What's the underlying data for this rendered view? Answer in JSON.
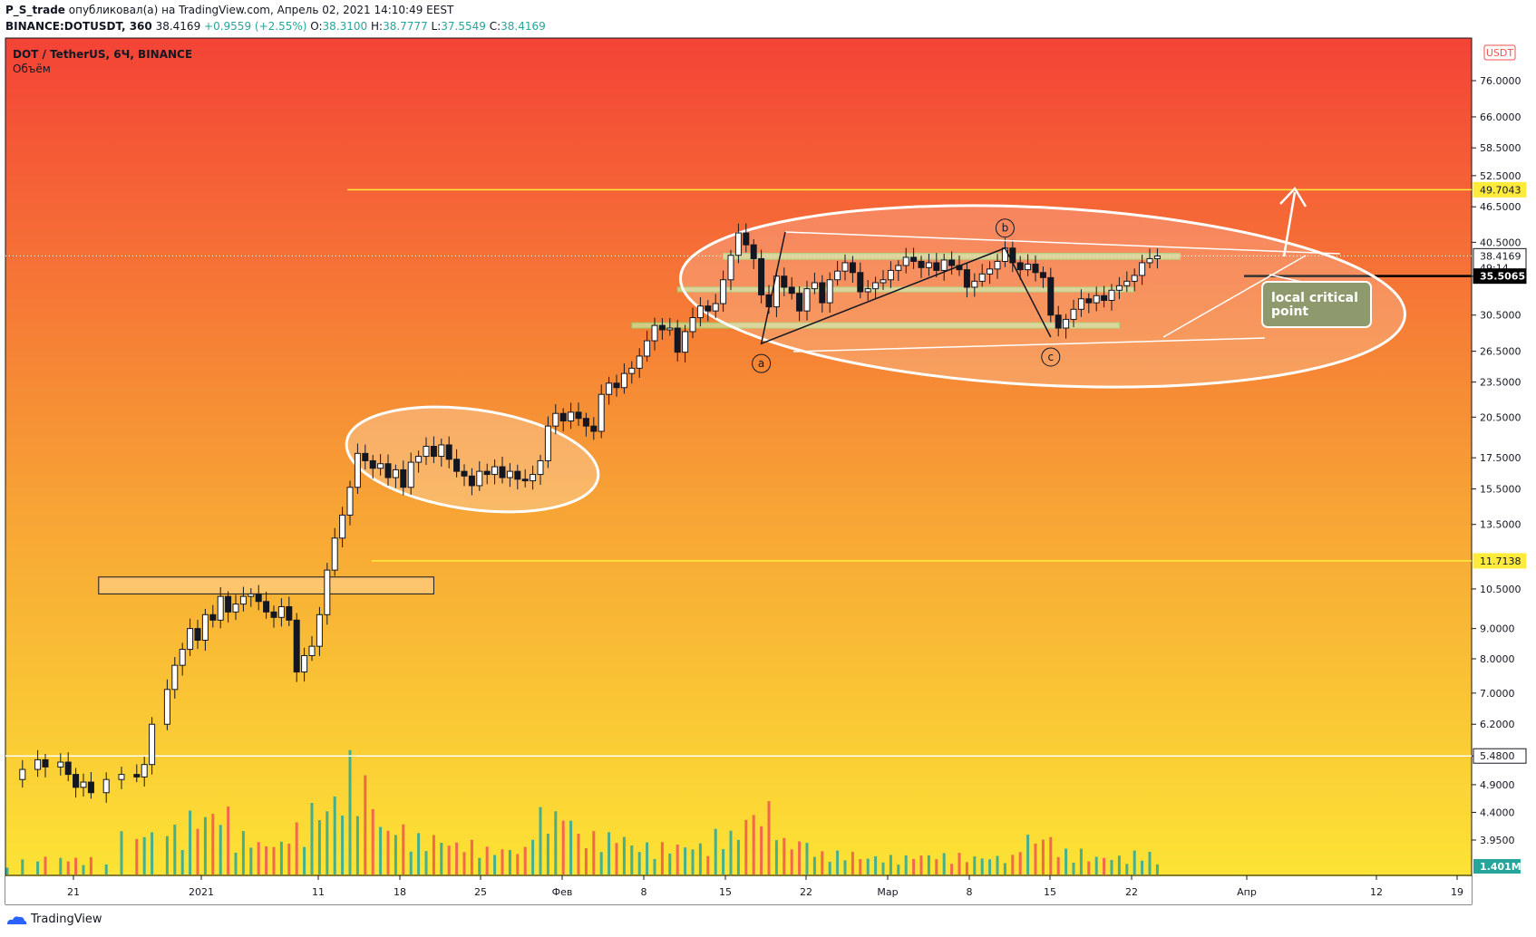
{
  "header": {
    "publisher": "P_S_trade",
    "published_text": "опубликовал(а) на TradingView.com, Апрель 02, 2021 14:10:49 EEST",
    "symbol_line_prefix": "BINANCE:DOTUSDT, 360",
    "last": "38.4169",
    "change": "+0.9559 (+2.55%)",
    "o_label": "O:",
    "o_value": "38.3100",
    "h_label": "H:",
    "h_value": "38.7777",
    "l_label": "L:",
    "l_value": "37.5549",
    "c_label": "C:",
    "c_value": "38.4169"
  },
  "chart": {
    "legend_title": "DOT / TetherUS, 6Ч, BINANCE",
    "legend_volume": "Объём",
    "currency_badge": "USDT",
    "countdown": "49:14",
    "volume_badge": "1.401M",
    "annotation_label_line1": "local critical",
    "annotation_label_line2": "point",
    "wave_labels": [
      "a",
      "b",
      "c"
    ],
    "colors": {
      "bg_top": "#f44336",
      "bg_mid": "#f7a535",
      "bg_bottom": "#fde835",
      "candle": "#131722",
      "volume_up": "#26a69a",
      "volume_down": "#ef5350",
      "yellow_line": "#ffeb3b",
      "white": "#ffffff",
      "black": "#000000"
    }
  },
  "footer": {
    "logo_text": "TradingView"
  },
  "chart_data": {
    "type": "candlestick",
    "scale": "log",
    "y_ticks": [
      "76.0000",
      "66.0000",
      "58.5000",
      "52.5000",
      "46.5000",
      "40.5000",
      "35.5000",
      "30.5000",
      "26.5000",
      "23.5000",
      "20.5000",
      "17.5000",
      "15.5000",
      "13.5000",
      "10.5000",
      "9.0000",
      "8.0000",
      "7.0000",
      "6.2000",
      "5.4800",
      "4.9000",
      "4.4000",
      "3.9500"
    ],
    "x_ticks": [
      "21",
      "2021",
      "11",
      "18",
      "25",
      "Фев",
      "8",
      "15",
      "22",
      "Мар",
      "8",
      "15",
      "22",
      "Апр",
      "12",
      "19"
    ],
    "price_badges": [
      {
        "label": "49.7043",
        "value": 49.7043,
        "style": "yellow"
      },
      {
        "label": "38.4169",
        "value": 38.4169,
        "style": "white"
      },
      {
        "label": "35.5065",
        "value": 35.5065,
        "style": "black"
      },
      {
        "label": "11.7138",
        "value": 11.7138,
        "style": "yellow"
      },
      {
        "label": "5.4800",
        "value": 5.48,
        "style": "white"
      }
    ],
    "horizontal_lines": [
      {
        "value": 49.7043,
        "color": "yellow"
      },
      {
        "value": 11.7138,
        "color": "yellow"
      },
      {
        "value": 5.48,
        "color": "white"
      },
      {
        "value": 35.5065,
        "color": "black"
      }
    ],
    "price_path": [
      {
        "x": 0,
        "p": 5.0
      },
      {
        "x": 2,
        "p": 5.2
      },
      {
        "x": 4,
        "p": 5.4
      },
      {
        "x": 5,
        "p": 5.25
      },
      {
        "x": 7,
        "p": 5.35
      },
      {
        "x": 8,
        "p": 5.1
      },
      {
        "x": 9,
        "p": 4.85
      },
      {
        "x": 10,
        "p": 4.95
      },
      {
        "x": 11,
        "p": 4.75
      },
      {
        "x": 13,
        "p": 5.0
      },
      {
        "x": 15,
        "p": 5.1
      },
      {
        "x": 17,
        "p": 5.05
      },
      {
        "x": 18,
        "p": 5.3
      },
      {
        "x": 19,
        "p": 6.2
      },
      {
        "x": 21,
        "p": 7.1
      },
      {
        "x": 22,
        "p": 7.8
      },
      {
        "x": 23,
        "p": 8.3
      },
      {
        "x": 24,
        "p": 9.0
      },
      {
        "x": 25,
        "p": 8.6
      },
      {
        "x": 26,
        "p": 9.5
      },
      {
        "x": 27,
        "p": 9.3
      },
      {
        "x": 28,
        "p": 10.2
      },
      {
        "x": 29,
        "p": 9.6
      },
      {
        "x": 30,
        "p": 9.9
      },
      {
        "x": 31,
        "p": 10.2
      },
      {
        "x": 32,
        "p": 10.3
      },
      {
        "x": 33,
        "p": 10.0
      },
      {
        "x": 34,
        "p": 9.6
      },
      {
        "x": 35,
        "p": 9.4
      },
      {
        "x": 36,
        "p": 9.8
      },
      {
        "x": 37,
        "p": 9.3
      },
      {
        "x": 38,
        "p": 7.6
      },
      {
        "x": 39,
        "p": 8.1
      },
      {
        "x": 40,
        "p": 8.4
      },
      {
        "x": 41,
        "p": 9.5
      },
      {
        "x": 42,
        "p": 11.3
      },
      {
        "x": 43,
        "p": 12.8
      },
      {
        "x": 44,
        "p": 14.0
      },
      {
        "x": 45,
        "p": 15.6
      },
      {
        "x": 46,
        "p": 17.8
      },
      {
        "x": 47,
        "p": 17.3
      },
      {
        "x": 48,
        "p": 16.8
      },
      {
        "x": 49,
        "p": 17.1
      },
      {
        "x": 50,
        "p": 16.2
      },
      {
        "x": 51,
        "p": 16.7
      },
      {
        "x": 52,
        "p": 15.6
      },
      {
        "x": 53,
        "p": 17.2
      },
      {
        "x": 54,
        "p": 17.6
      },
      {
        "x": 55,
        "p": 18.3
      },
      {
        "x": 56,
        "p": 17.6
      },
      {
        "x": 57,
        "p": 18.4
      },
      {
        "x": 58,
        "p": 17.4
      },
      {
        "x": 59,
        "p": 16.6
      },
      {
        "x": 60,
        "p": 16.3
      },
      {
        "x": 61,
        "p": 15.7
      },
      {
        "x": 62,
        "p": 16.6
      },
      {
        "x": 63,
        "p": 16.4
      },
      {
        "x": 64,
        "p": 16.9
      },
      {
        "x": 65,
        "p": 16.2
      },
      {
        "x": 66,
        "p": 16.6
      },
      {
        "x": 67,
        "p": 16.1
      },
      {
        "x": 68,
        "p": 16.0
      },
      {
        "x": 69,
        "p": 16.4
      },
      {
        "x": 70,
        "p": 17.3
      },
      {
        "x": 71,
        "p": 19.8
      },
      {
        "x": 72,
        "p": 20.8
      },
      {
        "x": 73,
        "p": 20.2
      },
      {
        "x": 74,
        "p": 20.9
      },
      {
        "x": 75,
        "p": 20.4
      },
      {
        "x": 76,
        "p": 19.8
      },
      {
        "x": 77,
        "p": 19.4
      },
      {
        "x": 78,
        "p": 22.4
      },
      {
        "x": 79,
        "p": 23.4
      },
      {
        "x": 80,
        "p": 23.0
      },
      {
        "x": 81,
        "p": 24.3
      },
      {
        "x": 82,
        "p": 24.8
      },
      {
        "x": 83,
        "p": 26.0
      },
      {
        "x": 84,
        "p": 27.6
      },
      {
        "x": 85,
        "p": 29.3
      },
      {
        "x": 86,
        "p": 28.8
      },
      {
        "x": 87,
        "p": 29.0
      },
      {
        "x": 88,
        "p": 26.4
      },
      {
        "x": 89,
        "p": 28.6
      },
      {
        "x": 90,
        "p": 30.2
      },
      {
        "x": 91,
        "p": 31.6
      },
      {
        "x": 92,
        "p": 31.0
      },
      {
        "x": 93,
        "p": 31.9
      },
      {
        "x": 94,
        "p": 35.0
      },
      {
        "x": 95,
        "p": 38.5
      },
      {
        "x": 96,
        "p": 42.0
      },
      {
        "x": 97,
        "p": 40.1
      },
      {
        "x": 98,
        "p": 38.0
      },
      {
        "x": 99,
        "p": 33.0
      },
      {
        "x": 100,
        "p": 31.5
      },
      {
        "x": 101,
        "p": 35.5
      },
      {
        "x": 102,
        "p": 34.0
      },
      {
        "x": 103,
        "p": 33.2
      },
      {
        "x": 104,
        "p": 31.0
      },
      {
        "x": 105,
        "p": 33.8
      },
      {
        "x": 106,
        "p": 34.6
      },
      {
        "x": 107,
        "p": 32.0
      },
      {
        "x": 108,
        "p": 35.0
      },
      {
        "x": 109,
        "p": 36.2
      },
      {
        "x": 110,
        "p": 37.4
      },
      {
        "x": 111,
        "p": 36.0
      },
      {
        "x": 112,
        "p": 33.4
      },
      {
        "x": 113,
        "p": 33.8
      },
      {
        "x": 114,
        "p": 34.6
      },
      {
        "x": 115,
        "p": 35.0
      },
      {
        "x": 116,
        "p": 36.3
      },
      {
        "x": 117,
        "p": 37.0
      },
      {
        "x": 118,
        "p": 38.2
      },
      {
        "x": 119,
        "p": 37.6
      },
      {
        "x": 120,
        "p": 36.7
      },
      {
        "x": 121,
        "p": 37.4
      },
      {
        "x": 122,
        "p": 36.3
      },
      {
        "x": 123,
        "p": 37.8
      },
      {
        "x": 124,
        "p": 37.0
      },
      {
        "x": 125,
        "p": 36.4
      },
      {
        "x": 126,
        "p": 34.0
      },
      {
        "x": 127,
        "p": 34.8
      },
      {
        "x": 128,
        "p": 35.8
      },
      {
        "x": 129,
        "p": 36.5
      },
      {
        "x": 130,
        "p": 37.6
      },
      {
        "x": 131,
        "p": 39.6
      },
      {
        "x": 132,
        "p": 37.4
      },
      {
        "x": 133,
        "p": 36.4
      },
      {
        "x": 134,
        "p": 37.2
      },
      {
        "x": 135,
        "p": 36.0
      },
      {
        "x": 136,
        "p": 35.3
      },
      {
        "x": 137,
        "p": 30.5
      },
      {
        "x": 138,
        "p": 29.0
      },
      {
        "x": 139,
        "p": 30.0
      },
      {
        "x": 140,
        "p": 31.2
      },
      {
        "x": 141,
        "p": 32.5
      },
      {
        "x": 142,
        "p": 32.0
      },
      {
        "x": 143,
        "p": 32.9
      },
      {
        "x": 144,
        "p": 32.3
      },
      {
        "x": 145,
        "p": 33.6
      },
      {
        "x": 146,
        "p": 34.2
      },
      {
        "x": 147,
        "p": 34.8
      },
      {
        "x": 148,
        "p": 35.6
      },
      {
        "x": 149,
        "p": 37.4
      },
      {
        "x": 150,
        "p": 38.0
      },
      {
        "x": 151,
        "p": 38.4
      }
    ],
    "annotations": {
      "horizontal_boxes": [
        {
          "from_x": 12,
          "to_x": 56,
          "low": 10.3,
          "high": 11.0,
          "fill": "#ffcc80"
        },
        {
          "from_x": 94,
          "to_x": 154,
          "low": 37.9,
          "high": 38.8,
          "fill": "#c8e6a0"
        },
        {
          "from_x": 88,
          "to_x": 148,
          "low": 33.4,
          "high": 34.0,
          "fill": "#c8e6a0"
        },
        {
          "from_x": 82,
          "to_x": 146,
          "low": 29.0,
          "high": 29.6,
          "fill": "#c8e6a0"
        }
      ],
      "wave_points": [
        {
          "label": "a",
          "x": 99,
          "p": 27.3
        },
        {
          "label": "b",
          "x": 131,
          "p": 39.6
        },
        {
          "label": "c",
          "x": 137,
          "p": 28.0
        }
      ]
    },
    "volume": [
      {
        "x": 0,
        "v": 0.7,
        "up": true
      },
      {
        "x": 5,
        "v": 0.9,
        "up": false
      },
      {
        "x": 10,
        "v": 0.8,
        "up": true
      },
      {
        "x": 18,
        "v": 2.1,
        "up": true
      },
      {
        "x": 20,
        "v": 2.8,
        "up": true
      },
      {
        "x": 22,
        "v": 2.3,
        "up": false
      },
      {
        "x": 25,
        "v": 3.0,
        "up": true
      },
      {
        "x": 28,
        "v": 3.2,
        "up": true
      },
      {
        "x": 30,
        "v": 2.0,
        "up": false
      },
      {
        "x": 35,
        "v": 1.6,
        "up": false
      },
      {
        "x": 38,
        "v": 2.4,
        "up": false
      },
      {
        "x": 41,
        "v": 3.4,
        "up": true
      },
      {
        "x": 43,
        "v": 4.0,
        "up": true
      },
      {
        "x": 45,
        "v": 5.8,
        "up": true
      },
      {
        "x": 47,
        "v": 4.6,
        "up": true
      },
      {
        "x": 50,
        "v": 2.4,
        "up": false
      },
      {
        "x": 55,
        "v": 1.9,
        "up": true
      },
      {
        "x": 60,
        "v": 1.6,
        "up": false
      },
      {
        "x": 65,
        "v": 1.3,
        "up": true
      },
      {
        "x": 71,
        "v": 3.1,
        "up": true
      },
      {
        "x": 78,
        "v": 2.0,
        "up": true
      },
      {
        "x": 85,
        "v": 1.5,
        "up": true
      },
      {
        "x": 89,
        "v": 1.5,
        "up": false
      },
      {
        "x": 95,
        "v": 2.1,
        "up": true
      },
      {
        "x": 98,
        "v": 3.0,
        "up": false
      },
      {
        "x": 99,
        "v": 3.4,
        "up": false
      },
      {
        "x": 103,
        "v": 1.7,
        "up": true
      },
      {
        "x": 108,
        "v": 1.1,
        "up": true
      },
      {
        "x": 115,
        "v": 0.9,
        "up": false
      },
      {
        "x": 122,
        "v": 1.0,
        "up": true
      },
      {
        "x": 128,
        "v": 0.9,
        "up": true
      },
      {
        "x": 136,
        "v": 1.9,
        "up": false
      },
      {
        "x": 138,
        "v": 1.2,
        "up": false
      },
      {
        "x": 145,
        "v": 0.9,
        "up": true
      },
      {
        "x": 149,
        "v": 1.1,
        "up": true
      },
      {
        "x": 151,
        "v": 0.6,
        "up": true
      }
    ]
  }
}
